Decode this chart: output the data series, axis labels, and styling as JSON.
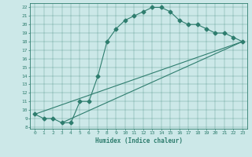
{
  "xlabel": "Humidex (Indice chaleur)",
  "background_color": "#cce8e8",
  "line_color": "#2e7d6e",
  "xlim": [
    -0.5,
    23.5
  ],
  "ylim": [
    7.8,
    22.5
  ],
  "xticks": [
    0,
    1,
    2,
    3,
    4,
    5,
    6,
    7,
    8,
    9,
    10,
    11,
    12,
    13,
    14,
    15,
    16,
    17,
    18,
    19,
    20,
    21,
    22,
    23
  ],
  "yticks": [
    8,
    9,
    10,
    11,
    12,
    13,
    14,
    15,
    16,
    17,
    18,
    19,
    20,
    21,
    22
  ],
  "curve1_x": [
    0,
    1,
    2,
    3,
    4,
    5,
    6,
    7,
    8,
    9,
    10,
    11,
    12,
    13,
    14,
    15,
    16,
    17,
    18,
    19,
    20,
    21,
    22,
    23
  ],
  "curve1_y": [
    9.5,
    9.0,
    9.0,
    8.5,
    8.5,
    11.0,
    11.0,
    14.0,
    18.0,
    19.5,
    20.5,
    21.0,
    21.5,
    22.0,
    22.0,
    21.5,
    20.5,
    20.0,
    20.0,
    19.5,
    19.0,
    19.0,
    18.5,
    18.0
  ],
  "line1_x": [
    0,
    23
  ],
  "line1_y": [
    9.5,
    18.0
  ],
  "line2_x": [
    3,
    23
  ],
  "line2_y": [
    8.5,
    18.0
  ]
}
